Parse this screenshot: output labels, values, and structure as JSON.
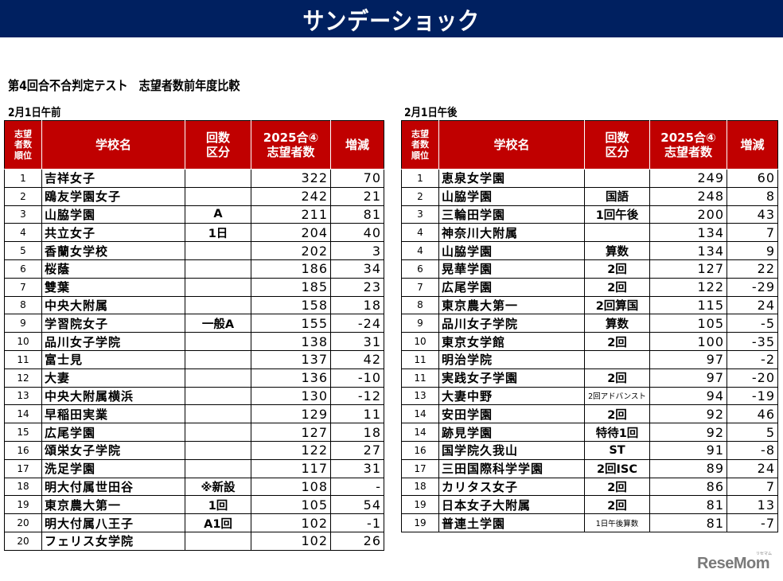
{
  "banner": {
    "title": "サンデーショック"
  },
  "subtitle": "第4回合不合判定テスト　志望者数前年度比較",
  "headers": {
    "rank": [
      "志望",
      "者数",
      "順位"
    ],
    "school": "学校名",
    "division": [
      "回数",
      "区分"
    ],
    "applicants": [
      "2025合④",
      "志望者数"
    ],
    "change": "増減"
  },
  "morning": {
    "label": "2月1日午前",
    "rows": [
      {
        "rank": "1",
        "school": "吉祥女子",
        "division": "",
        "applicants": "322",
        "change": "70"
      },
      {
        "rank": "2",
        "school": "鴎友学園女子",
        "division": "",
        "applicants": "242",
        "change": "21"
      },
      {
        "rank": "3",
        "school": "山脇学園",
        "division": "A",
        "applicants": "211",
        "change": "81"
      },
      {
        "rank": "4",
        "school": "共立女子",
        "division": "1日",
        "applicants": "204",
        "change": "40"
      },
      {
        "rank": "5",
        "school": "香蘭女学校",
        "division": "",
        "applicants": "202",
        "change": "3"
      },
      {
        "rank": "6",
        "school": "桜蔭",
        "division": "",
        "applicants": "186",
        "change": "34"
      },
      {
        "rank": "7",
        "school": "雙葉",
        "division": "",
        "applicants": "185",
        "change": "23"
      },
      {
        "rank": "8",
        "school": "中央大附属",
        "division": "",
        "applicants": "158",
        "change": "18"
      },
      {
        "rank": "9",
        "school": "学習院女子",
        "division": "一般A",
        "applicants": "155",
        "change": "-24"
      },
      {
        "rank": "10",
        "school": "品川女子学院",
        "division": "",
        "applicants": "138",
        "change": "31"
      },
      {
        "rank": "11",
        "school": "富士見",
        "division": "",
        "applicants": "137",
        "change": "42"
      },
      {
        "rank": "12",
        "school": "大妻",
        "division": "",
        "applicants": "136",
        "change": "-10"
      },
      {
        "rank": "13",
        "school": "中央大附属横浜",
        "division": "",
        "applicants": "130",
        "change": "-12"
      },
      {
        "rank": "14",
        "school": "早稲田実業",
        "division": "",
        "applicants": "129",
        "change": "11"
      },
      {
        "rank": "15",
        "school": "広尾学園",
        "division": "",
        "applicants": "127",
        "change": "18"
      },
      {
        "rank": "16",
        "school": "頌栄女子学院",
        "division": "",
        "applicants": "122",
        "change": "27"
      },
      {
        "rank": "17",
        "school": "洗足学園",
        "division": "",
        "applicants": "117",
        "change": "31"
      },
      {
        "rank": "18",
        "school": "明大付属世田谷",
        "division": "※新設",
        "applicants": "108",
        "change": "-"
      },
      {
        "rank": "19",
        "school": "東京農大第一",
        "division": "1回",
        "applicants": "105",
        "change": "54"
      },
      {
        "rank": "20",
        "school": "明大付属八王子",
        "division": "A1回",
        "applicants": "102",
        "change": "-1"
      },
      {
        "rank": "20",
        "school": "フェリス女学院",
        "division": "",
        "applicants": "102",
        "change": "26"
      }
    ]
  },
  "afternoon": {
    "label": "2月1日午後",
    "rows": [
      {
        "rank": "1",
        "school": "恵泉女学園",
        "division": "",
        "applicants": "249",
        "change": "60"
      },
      {
        "rank": "2",
        "school": "山脇学園",
        "division": "国語",
        "applicants": "248",
        "change": "8"
      },
      {
        "rank": "3",
        "school": "三輪田学園",
        "division": "1回午後",
        "applicants": "200",
        "change": "43"
      },
      {
        "rank": "4",
        "school": "神奈川大附属",
        "division": "",
        "applicants": "134",
        "change": "7"
      },
      {
        "rank": "4",
        "school": "山脇学園",
        "division": "算数",
        "applicants": "134",
        "change": "9"
      },
      {
        "rank": "6",
        "school": "晃華学園",
        "division": "2回",
        "applicants": "127",
        "change": "22"
      },
      {
        "rank": "7",
        "school": "広尾学園",
        "division": "2回",
        "applicants": "122",
        "change": "-29"
      },
      {
        "rank": "8",
        "school": "東京農大第一",
        "division": "2回算国",
        "applicants": "115",
        "change": "24"
      },
      {
        "rank": "9",
        "school": "品川女子学院",
        "division": "算数",
        "applicants": "105",
        "change": "-5"
      },
      {
        "rank": "10",
        "school": "東京女学館",
        "division": "2回",
        "applicants": "100",
        "change": "-35"
      },
      {
        "rank": "11",
        "school": "明治学院",
        "division": "",
        "applicants": "97",
        "change": "-2"
      },
      {
        "rank": "11",
        "school": "実践女子学園",
        "division": "2回",
        "applicants": "97",
        "change": "-20"
      },
      {
        "rank": "13",
        "school": "大妻中野",
        "division": "2回アドバンスト",
        "applicants": "94",
        "change": "-19",
        "small": true
      },
      {
        "rank": "14",
        "school": "安田学園",
        "division": "2回",
        "applicants": "92",
        "change": "46"
      },
      {
        "rank": "14",
        "school": "跡見学園",
        "division": "特待1回",
        "applicants": "92",
        "change": "5"
      },
      {
        "rank": "16",
        "school": "国学院久我山",
        "division": "ST",
        "applicants": "91",
        "change": "-8"
      },
      {
        "rank": "17",
        "school": "三田国際科学学園",
        "division": "2回ISC",
        "applicants": "89",
        "change": "24"
      },
      {
        "rank": "18",
        "school": "カリタス女子",
        "division": "2回",
        "applicants": "86",
        "change": "7"
      },
      {
        "rank": "19",
        "school": "日本女子大附属",
        "division": "2回",
        "applicants": "81",
        "change": "13"
      },
      {
        "rank": "19",
        "school": "普連土学園",
        "division": "1日午後算数",
        "applicants": "81",
        "change": "-7",
        "small": true
      }
    ]
  },
  "logo": {
    "text": "ReseMom",
    "ruby": "リセマム"
  },
  "colors": {
    "banner": "#002060",
    "header": "#c00000",
    "logo": "#7a7a7a"
  }
}
